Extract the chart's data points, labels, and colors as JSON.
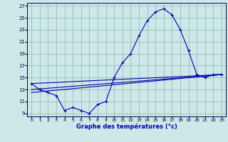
{
  "xlabel": "Graphe des températures (°c)",
  "bg_color": "#cce8e8",
  "grid_color": "#99bbbb",
  "line_color": "#0000aa",
  "xlim": [
    -0.5,
    23.5
  ],
  "ylim": [
    8.5,
    27.5
  ],
  "xticks": [
    0,
    1,
    2,
    3,
    4,
    5,
    6,
    7,
    8,
    9,
    10,
    11,
    12,
    13,
    14,
    15,
    16,
    17,
    18,
    19,
    20,
    21,
    22,
    23
  ],
  "yticks": [
    9,
    11,
    13,
    15,
    17,
    19,
    21,
    23,
    25,
    27
  ],
  "hourly_temps": [
    14.0,
    13.0,
    12.5,
    12.0,
    9.5,
    10.0,
    9.5,
    9.0,
    10.5,
    11.0,
    15.0,
    17.5,
    19.0,
    22.0,
    24.5,
    26.0,
    26.5,
    25.5,
    23.0,
    19.5,
    15.5,
    15.0,
    15.5,
    15.5
  ],
  "line1_x": [
    0,
    23
  ],
  "line1_y": [
    14.0,
    15.5
  ],
  "line2_x": [
    0,
    23
  ],
  "line2_y": [
    13.0,
    15.5
  ],
  "line3_x": [
    0,
    23
  ],
  "line3_y": [
    12.5,
    15.5
  ]
}
